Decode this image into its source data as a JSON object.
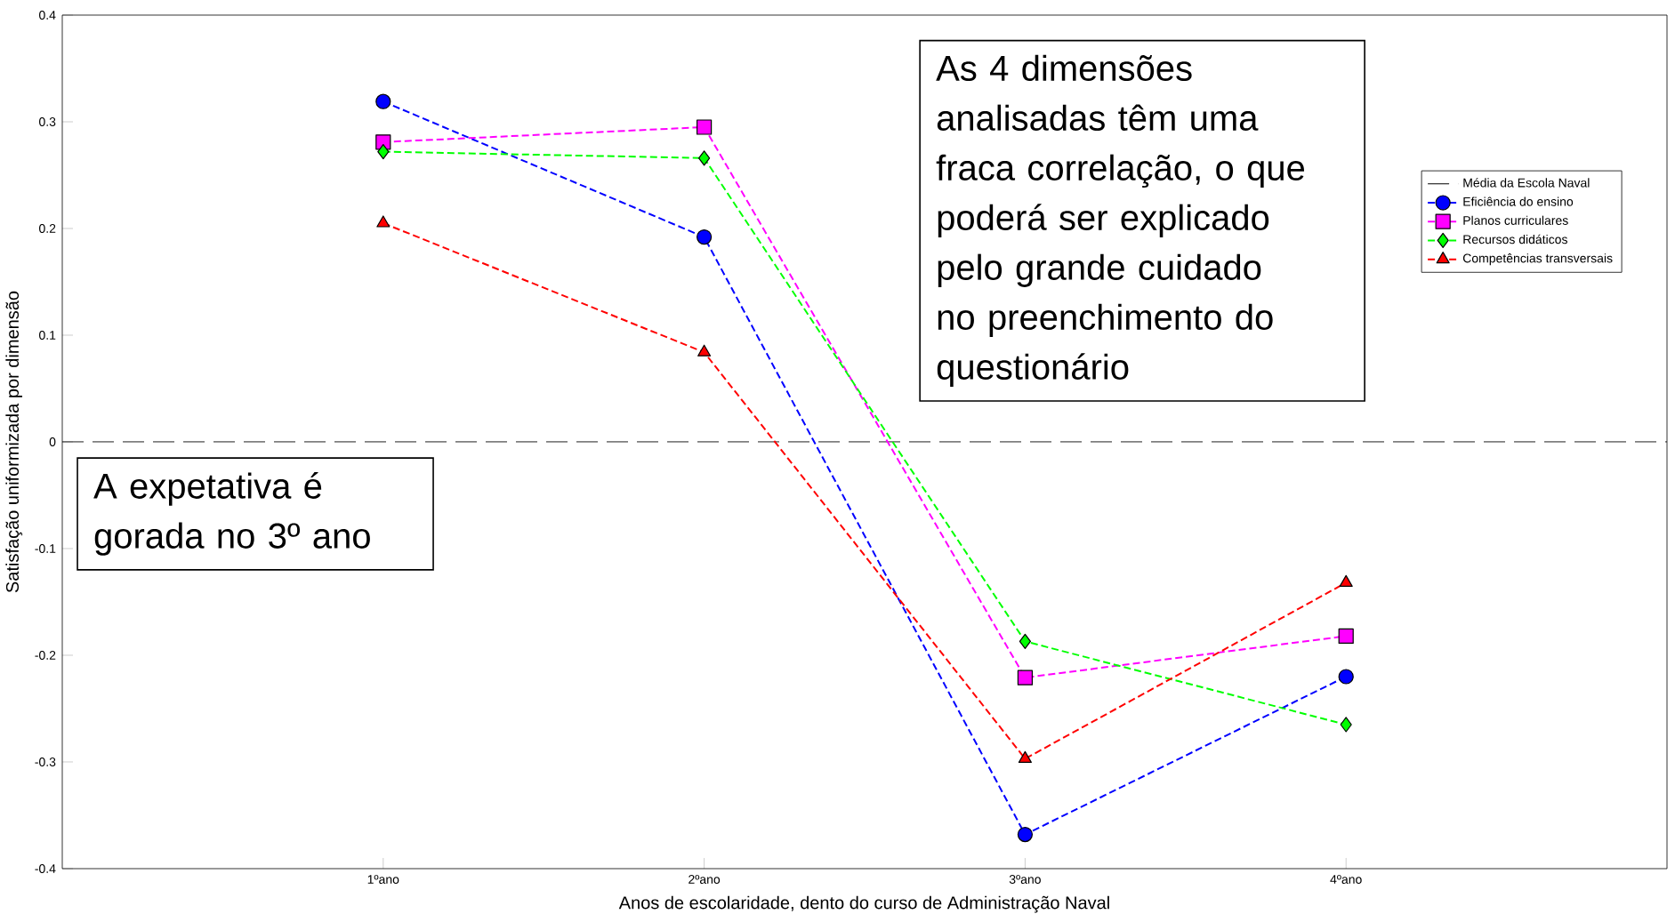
{
  "chart_data": {
    "type": "line",
    "xlabel": "Anos de escolaridade, dento do curso de Administração Naval",
    "ylabel": "Satisfação uniformizada por dimensão",
    "x": [
      1,
      2,
      3,
      4
    ],
    "xlim": [
      0,
      5
    ],
    "xticks": [
      {
        "value": 1,
        "label": "1ºano"
      },
      {
        "value": 2,
        "label": "2ºano"
      },
      {
        "value": 3,
        "label": "3ºano"
      },
      {
        "value": 4,
        "label": "4ºano"
      }
    ],
    "ylim": [
      -0.4,
      0.4
    ],
    "yticks": [
      -0.4,
      -0.3,
      -0.2,
      -0.1,
      0,
      0.1,
      0.2,
      0.3,
      0.4
    ],
    "line_style": "dashed",
    "legend": "top right",
    "ref_lines": [
      {
        "axis": "y",
        "value": 0,
        "label": "Média da Escola Naval",
        "color": "#000000",
        "line_style": "dashed"
      }
    ],
    "series": [
      {
        "name": "Eficiência do ensino",
        "color": "#0000ff",
        "marker": "circle",
        "values": [
          0.319,
          0.192,
          -0.368,
          -0.22
        ]
      },
      {
        "name": "Planos curriculares",
        "color": "#ff00ff",
        "marker": "square",
        "values": [
          0.281,
          0.295,
          -0.221,
          -0.182
        ]
      },
      {
        "name": "Recursos didáticos",
        "color": "#00ff00",
        "marker": "diamond",
        "values": [
          0.272,
          0.266,
          -0.187,
          -0.265
        ]
      },
      {
        "name": "Competências transversais",
        "color": "#ff0000",
        "marker": "triangle",
        "values": [
          0.205,
          0.084,
          -0.297,
          -0.132
        ]
      }
    ],
    "annotations": [
      "As 4 dimensões analisadas têm uma fraca correlação, o que poderá ser explicado pelo grande cuidado no preenchimento do questionário",
      "A expetativa é gorada no 3º ano"
    ]
  }
}
